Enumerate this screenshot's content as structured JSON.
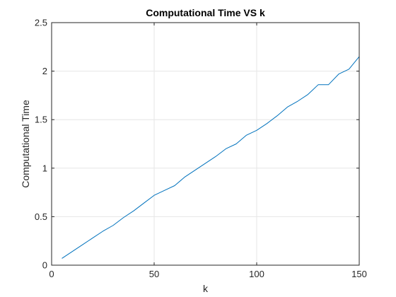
{
  "chart_data": {
    "type": "line",
    "title": "Computational Time VS k",
    "xlabel": "k",
    "ylabel": "Computational Time",
    "xlim": [
      0,
      150
    ],
    "ylim": [
      0,
      2.5
    ],
    "xticks": [
      0,
      50,
      100,
      150
    ],
    "yticks": [
      0,
      0.5,
      1,
      1.5,
      2,
      2.5
    ],
    "xtick_labels": [
      "0",
      "50",
      "100",
      "150"
    ],
    "ytick_labels": [
      "0",
      "0.5",
      "1",
      "1.5",
      "2",
      "2.5"
    ],
    "grid": true,
    "series": [
      {
        "color": "#0072bd",
        "x": [
          5,
          10,
          15,
          20,
          25,
          30,
          35,
          40,
          45,
          50,
          55,
          60,
          65,
          70,
          75,
          80,
          85,
          90,
          95,
          100,
          105,
          110,
          115,
          120,
          125,
          130,
          135,
          140,
          145,
          150
        ],
        "y": [
          0.07,
          0.14,
          0.21,
          0.28,
          0.35,
          0.41,
          0.49,
          0.56,
          0.64,
          0.72,
          0.77,
          0.82,
          0.91,
          0.98,
          1.05,
          1.12,
          1.2,
          1.25,
          1.34,
          1.39,
          1.46,
          1.54,
          1.63,
          1.69,
          1.76,
          1.86,
          1.86,
          1.97,
          2.02,
          2.15
        ]
      }
    ]
  }
}
